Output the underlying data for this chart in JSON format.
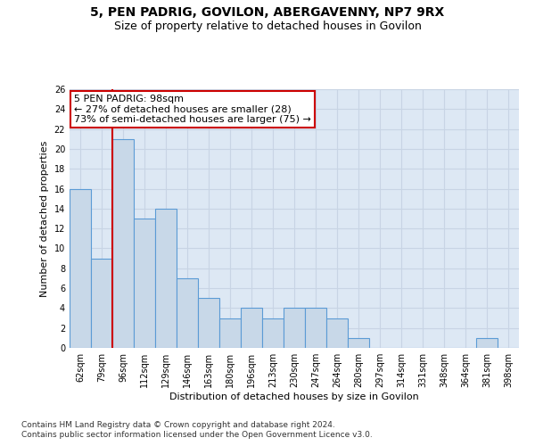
{
  "title_line1": "5, PEN PADRIG, GOVILON, ABERGAVENNY, NP7 9RX",
  "title_line2": "Size of property relative to detached houses in Govilon",
  "xlabel": "Distribution of detached houses by size in Govilon",
  "ylabel": "Number of detached properties",
  "categories": [
    "62sqm",
    "79sqm",
    "96sqm",
    "112sqm",
    "129sqm",
    "146sqm",
    "163sqm",
    "180sqm",
    "196sqm",
    "213sqm",
    "230sqm",
    "247sqm",
    "264sqm",
    "280sqm",
    "297sqm",
    "314sqm",
    "331sqm",
    "348sqm",
    "364sqm",
    "381sqm",
    "398sqm"
  ],
  "values": [
    16,
    9,
    21,
    13,
    14,
    7,
    5,
    3,
    4,
    3,
    4,
    4,
    3,
    1,
    0,
    0,
    0,
    0,
    0,
    1,
    0
  ],
  "bar_color": "#c8d8e8",
  "bar_edge_color": "#5b9bd5",
  "subject_line_color": "#cc0000",
  "annotation_text": "5 PEN PADRIG: 98sqm\n← 27% of detached houses are smaller (28)\n73% of semi-detached houses are larger (75) →",
  "annotation_box_color": "#ffffff",
  "annotation_box_edge_color": "#cc0000",
  "ylim": [
    0,
    26
  ],
  "yticks": [
    0,
    2,
    4,
    6,
    8,
    10,
    12,
    14,
    16,
    18,
    20,
    22,
    24,
    26
  ],
  "grid_color": "#c8d4e4",
  "background_color": "#dde8f4",
  "footer_line1": "Contains HM Land Registry data © Crown copyright and database right 2024.",
  "footer_line2": "Contains public sector information licensed under the Open Government Licence v3.0.",
  "fig_width": 6.0,
  "fig_height": 5.0,
  "title_fontsize": 10,
  "subtitle_fontsize": 9,
  "axis_label_fontsize": 8,
  "tick_fontsize": 7,
  "annotation_fontsize": 8,
  "footer_fontsize": 6.5
}
